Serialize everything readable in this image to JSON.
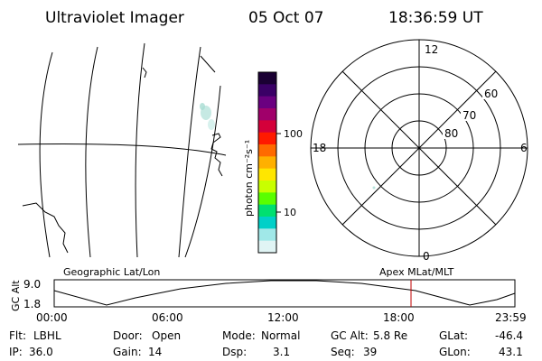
{
  "header": {
    "title": "Ultraviolet Imager",
    "date": "05 Oct 07",
    "time": "18:36:59 UT"
  },
  "colorbar": {
    "unit_label": "photon cm⁻²s⁻¹",
    "tick_labels": [
      "100",
      "10"
    ],
    "colors": [
      "#1a0033",
      "#3a0066",
      "#6a0080",
      "#a0006a",
      "#d4003a",
      "#ff1a00",
      "#ff6a00",
      "#ffb000",
      "#ffe600",
      "#c8ff00",
      "#5aff00",
      "#00e070",
      "#00d0c8",
      "#a0e8e8",
      "#e0f4f4"
    ]
  },
  "polar_plot": {
    "mlt_labels": {
      "top": "12",
      "right": "6",
      "bottom": "0",
      "left": "18"
    },
    "lat_labels": [
      "60",
      "70",
      "80"
    ]
  },
  "timeline": {
    "y_axis_label": "GC Alt",
    "y_max": "9.0",
    "y_min": "1.8",
    "left_caption": "Geographic Lat/Lon",
    "right_caption": "Apex MLat/MLT",
    "x_ticks": [
      "00:00",
      "06:00",
      "12:00",
      "18:00",
      "23:59"
    ],
    "current_time_marker": "18:37",
    "marker_color": "#c00000"
  },
  "footer": {
    "row1": [
      {
        "label": "Flt:",
        "value": "LBHL"
      },
      {
        "label": "Door:",
        "value": "Open"
      },
      {
        "label": "Mode:",
        "value": "Normal"
      },
      {
        "label": "GC Alt:",
        "value": "5.8 Re"
      },
      {
        "label": "GLat:",
        "value": "-46.4"
      }
    ],
    "row2": [
      {
        "label": "IP:",
        "value": "36.0"
      },
      {
        "label": "Gain:",
        "value": "14"
      },
      {
        "label": "Dsp:",
        "value": "3.1"
      },
      {
        "label": "Seq:",
        "value": "39"
      },
      {
        "label": "GLon:",
        "value": "43.1"
      }
    ]
  }
}
